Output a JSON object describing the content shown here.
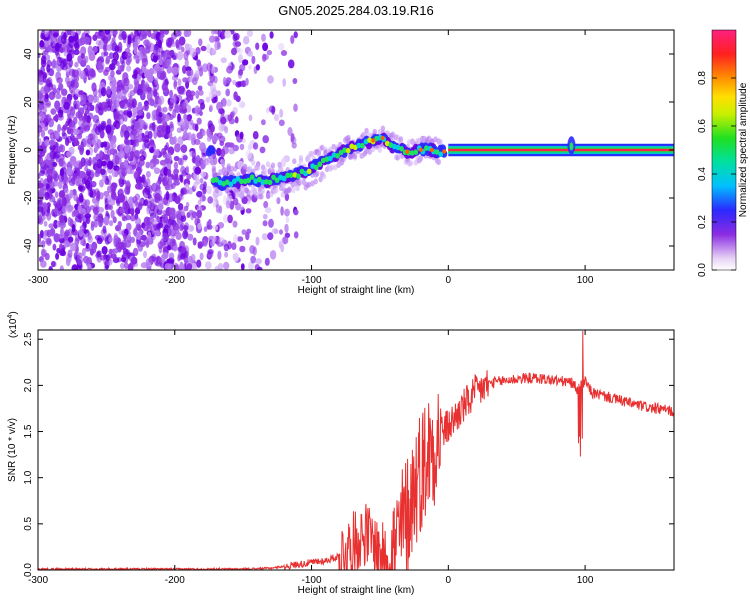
{
  "title": "GN05.2025.284.03.19.R16",
  "chart_data": [
    {
      "type": "heatmap",
      "xlabel": "Height of straight line (km)",
      "ylabel": "Frequency (Hz)",
      "xlim": [
        -300,
        165
      ],
      "ylim": [
        -50,
        50
      ],
      "xticks": [
        -300,
        -200,
        -100,
        0,
        100
      ],
      "yticks": [
        -40,
        -20,
        0,
        20,
        40
      ],
      "colorbar": {
        "label": "Normalized spectral amplitude",
        "range": [
          0,
          1
        ],
        "ticks": [
          0.0,
          0.2,
          0.4,
          0.6,
          0.8
        ],
        "tick_labels": [
          "0.0",
          "0.2",
          "0.4",
          "0.6",
          "0.8"
        ]
      },
      "ridge": {
        "x": [
          -172,
          -165,
          -155,
          -145,
          -135,
          -125,
          -115,
          -105,
          -95,
          -85,
          -75,
          -65,
          -55,
          -48,
          -42,
          -35,
          -28,
          -20,
          -12,
          -5,
          0,
          50,
          88,
          92,
          100,
          165
        ],
        "y": [
          -13,
          -14,
          -13,
          -12,
          -13,
          -12,
          -11,
          -9,
          -6,
          -3,
          0,
          2,
          4,
          5,
          2,
          0,
          -1,
          0,
          0,
          -1,
          0,
          0,
          0,
          1,
          0,
          0
        ]
      }
    },
    {
      "type": "line",
      "xlabel": "Height of straight line (km)",
      "ylabel": "SNR (10 * v/v)",
      "y_multiplier": "(x10",
      "y_multiplier_exp": "4",
      "y_multiplier_close": ")",
      "xlim": [
        -300,
        165
      ],
      "ylim": [
        0,
        2.6
      ],
      "xticks": [
        -300,
        -200,
        -100,
        0,
        100
      ],
      "yticks": [
        0.0,
        0.5,
        1.0,
        1.5,
        2.0,
        2.5
      ],
      "ytick_labels": [
        "0.0",
        "0.5",
        "1.0",
        "1.5",
        "2.0",
        "2.5"
      ],
      "color": "#e83030",
      "x": [
        -300,
        -250,
        -200,
        -150,
        -130,
        -120,
        -110,
        -100,
        -90,
        -80,
        -70,
        -65,
        -60,
        -55,
        -50,
        -45,
        -40,
        -35,
        -30,
        -25,
        -20,
        -15,
        -10,
        -5,
        0,
        10,
        20,
        30,
        40,
        50,
        60,
        70,
        80,
        90,
        95,
        100,
        105,
        110,
        120,
        130,
        140,
        150,
        165
      ],
      "y": [
        0.01,
        0.01,
        0.01,
        0.01,
        0.02,
        0.04,
        0.06,
        0.08,
        0.1,
        0.15,
        0.28,
        0.35,
        0.4,
        0.3,
        0.2,
        0.12,
        0.18,
        0.4,
        0.6,
        0.9,
        1.1,
        1.25,
        1.4,
        1.5,
        1.55,
        1.75,
        1.92,
        2.02,
        2.05,
        2.07,
        2.08,
        2.07,
        2.05,
        2.03,
        1.95,
        2.05,
        1.92,
        1.9,
        1.86,
        1.82,
        1.78,
        1.75,
        1.72
      ]
    }
  ]
}
